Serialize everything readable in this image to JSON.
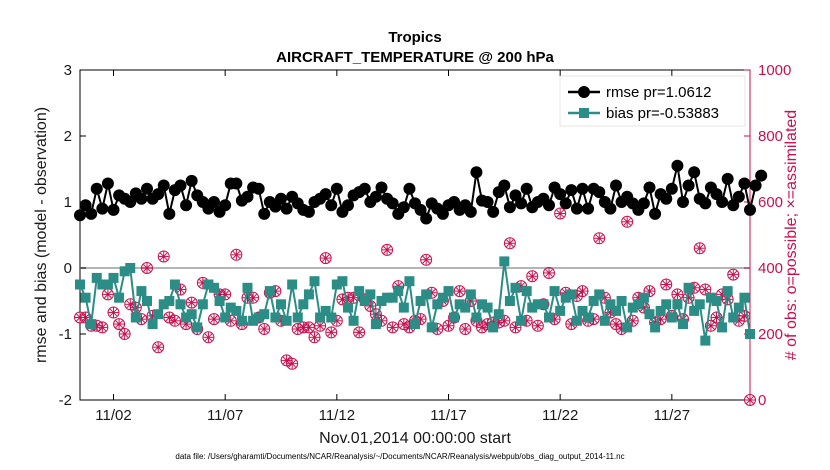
{
  "chart_data": {
    "type": "line",
    "title": "Tropics",
    "subtitle": "AIRCRAFT_TEMPERATURE @ 200 hPa",
    "xlabel": "Nov.01,2014 00:00:00 start",
    "ylabel": "rmse and bias (model - observation)",
    "ylabel_right": "# of obs: o=possible; ×=assimilated",
    "footer": "data file: /Users/gharamti/Documents/NCAR/Reanalysis/~/Documents/NCAR/Reanalysis/webpub/obs_diag_output_2014-11.nc",
    "xlim": [
      0.5,
      30.5
    ],
    "ylim": [
      -2,
      3
    ],
    "ylim_right": [
      0,
      1000
    ],
    "x_ticks": [
      2,
      7,
      12,
      17,
      22,
      27
    ],
    "x_tick_labels": [
      "11/02",
      "11/07",
      "11/12",
      "11/17",
      "11/22",
      "11/27"
    ],
    "y_ticks": [
      -2,
      -1,
      0,
      1,
      2,
      3
    ],
    "y_tick_labels": [
      "-2",
      "-1",
      "0",
      "1",
      "2",
      "3"
    ],
    "y_right_ticks": [
      0,
      200,
      400,
      600,
      800,
      1000
    ],
    "y_right_tick_labels": [
      "0",
      "200",
      "400",
      "600",
      "800",
      "1000"
    ],
    "series": [
      {
        "name": "rmse",
        "legend_label": "rmse pr=1.0612",
        "color": "#000000",
        "marker": "circle",
        "x_start": 0.5,
        "x_step": 0.25,
        "values": [
          0.8,
          0.95,
          0.82,
          1.2,
          0.9,
          1.28,
          0.88,
          1.1,
          1.05,
          1.0,
          1.13,
          1.05,
          1.2,
          1.05,
          1.12,
          1.25,
          0.82,
          1.18,
          1.25,
          0.95,
          1.32,
          1.1,
          1.0,
          0.9,
          1.0,
          0.85,
          0.95,
          1.28,
          1.28,
          1.02,
          1.08,
          1.22,
          1.2,
          0.82,
          1.0,
          0.93,
          1.05,
          0.9,
          1.08,
          0.98,
          0.88,
          0.85,
          1.0,
          1.05,
          1.12,
          0.95,
          1.2,
          0.85,
          0.95,
          1.1,
          1.15,
          1.2,
          1.0,
          1.08,
          1.22,
          1.05,
          0.98,
          0.82,
          0.92,
          1.2,
          0.98,
          0.88,
          0.75,
          0.98,
          0.9,
          0.82,
          0.95,
          1.0,
          0.88,
          0.95,
          0.85,
          1.45,
          1.02,
          1.0,
          0.85,
          1.15,
          1.25,
          0.92,
          1.1,
          0.98,
          1.2,
          0.92,
          1.0,
          1.05,
          0.95,
          1.22,
          1.12,
          0.98,
          1.18,
          0.9,
          1.2,
          0.9,
          1.2,
          1.15,
          1.0,
          0.9,
          1.25,
          1.0,
          1.08,
          0.98,
          0.88,
          0.98,
          1.22,
          0.82,
          1.12,
          1.05,
          1.2,
          1.55,
          1.0,
          1.25,
          1.45,
          1.05,
          0.98,
          1.22,
          1.12,
          1.0,
          1.35,
          0.95,
          1.08,
          1.28,
          0.88,
          1.25,
          1.4
        ],
        "point_count_note": "quarter-day samples"
      },
      {
        "name": "bias",
        "legend_label": "bias pr=-0.53883",
        "color": "#2c8c86",
        "marker": "square",
        "x_start": 0.5,
        "x_step": 0.25,
        "values": [
          -0.25,
          -0.45,
          -0.85,
          -0.15,
          -0.25,
          -0.25,
          -0.15,
          -0.45,
          -0.05,
          0.0,
          -0.75,
          -0.35,
          -0.5,
          -0.85,
          -0.7,
          -0.55,
          -0.5,
          -0.25,
          -0.55,
          -0.75,
          -0.7,
          -0.9,
          -0.55,
          -0.25,
          -0.3,
          -0.5,
          -0.75,
          -0.6,
          -0.65,
          -0.8,
          -0.3,
          -0.8,
          -0.75,
          -0.7,
          -0.35,
          -0.75,
          -0.55,
          -0.8,
          -0.25,
          -0.75,
          -0.55,
          -0.4,
          -0.2,
          -0.75,
          -0.65,
          -0.75,
          -0.25,
          -0.2,
          -0.6,
          -0.8,
          -0.35,
          -0.5,
          -0.4,
          -0.85,
          -0.5,
          -0.45,
          -0.45,
          -0.35,
          -0.6,
          -0.2,
          -0.85,
          -0.5,
          -0.4,
          -0.9,
          -0.55,
          -0.45,
          -0.35,
          -0.75,
          -0.55,
          -0.6,
          -0.4,
          -0.75,
          -0.55,
          -0.6,
          -0.9,
          -0.7,
          0.1,
          -0.5,
          -0.3,
          -0.8,
          -0.35,
          -0.6,
          -0.55,
          -0.55,
          -0.75,
          -0.35,
          -0.65,
          -0.45,
          -0.4,
          -0.8,
          -0.65,
          -0.75,
          -0.5,
          -0.4,
          -0.8,
          -0.55,
          -0.65,
          -0.5,
          -0.9,
          -0.6,
          -0.55,
          -0.45,
          -0.7,
          -0.9,
          -0.65,
          -0.55,
          -0.75,
          -0.55,
          -0.85,
          -0.3,
          -0.65,
          -0.55,
          -1.1,
          -0.45,
          -0.5,
          -0.9,
          -0.35,
          -0.75,
          -0.6,
          -0.45,
          -1.0
        ]
      },
      {
        "name": "obs possible",
        "color": "#c8104f",
        "marker": "circle-open",
        "axis": "right",
        "x_start": 0.5,
        "x_step": 0.25,
        "values": [
          250,
          250,
          225,
          225,
          220,
          320,
          265,
          230,
          200,
          290,
          280,
          245,
          400,
          255,
          160,
          435,
          250,
          240,
          335,
          230,
          295,
          215,
          355,
          190,
          245,
          320,
          320,
          240,
          440,
          230,
          310,
          310,
          250,
          215,
          325,
          330,
          240,
          120,
          110,
          215,
          220,
          220,
          190,
          225,
          430,
          205,
          240,
          305,
          310,
          310,
          205,
          305,
          285,
          260,
          240,
          455,
          220,
          345,
          230,
          220,
          240,
          245,
          425,
          325,
          215,
          300,
          225,
          250,
          330,
          215,
          300,
          240,
          220,
          230,
          235,
          235,
          240,
          475,
          220,
          345,
          240,
          375,
          225,
          290,
          385,
          245,
          565,
          325,
          230,
          315,
          330,
          240,
          245,
          490,
          310,
          265,
          230,
          215,
          540,
          240,
          310,
          280,
          330,
          235,
          245,
          350,
          255,
          320,
          245,
          310,
          340,
          460,
          335,
          225,
          250,
          320,
          305,
          380,
          240,
          255,
          0
        ],
        "scale_note": "read on right axis (0-1000)"
      }
    ]
  }
}
